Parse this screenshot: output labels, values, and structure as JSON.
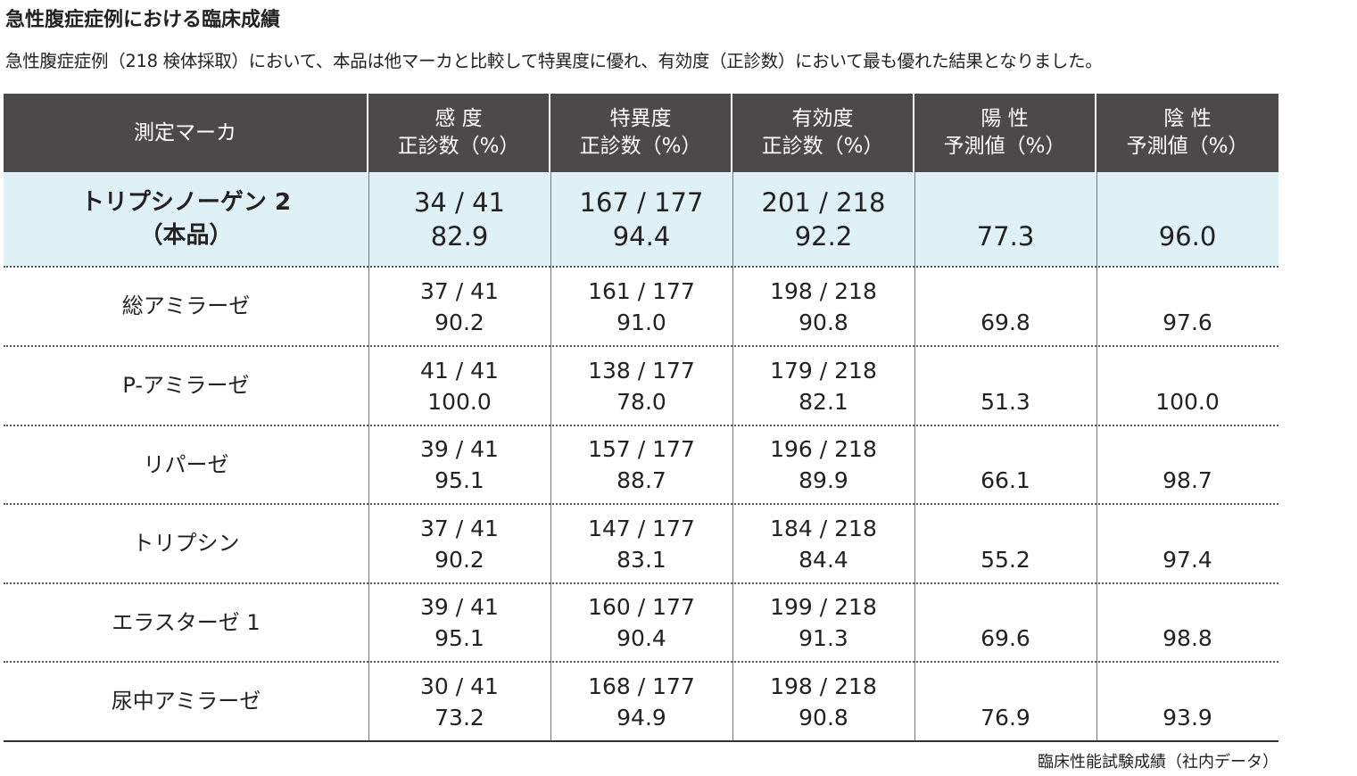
{
  "title": "急性腹症症例における臨床成績",
  "description": "急性腹症症例（218 検体採取）において、本品は他マーカと比較して特異度に優れ、有効度（正診数）において最も優れた結果となりました。",
  "table": {
    "header": [
      [
        "測定マーカ"
      ],
      [
        "感 度",
        "正診数（%）"
      ],
      [
        "特異度",
        "正診数（%）"
      ],
      [
        "有効度",
        "正診数（%）"
      ],
      [
        "陽 性",
        "予測値（%）"
      ],
      [
        "陰 性",
        "予測値（%）"
      ]
    ],
    "rows": [
      {
        "marker": [
          "トリプシノーゲン 2",
          "（本品）"
        ],
        "cells": [
          [
            "34 / 41",
            "82.9"
          ],
          [
            "167 / 177",
            "94.4"
          ],
          [
            "201 / 218",
            "92.2"
          ],
          [
            "77.3"
          ],
          [
            "96.0"
          ]
        ]
      },
      {
        "marker": [
          "総アミラーゼ"
        ],
        "cells": [
          [
            "37 / 41",
            "90.2"
          ],
          [
            "161 / 177",
            "91.0"
          ],
          [
            "198 / 218",
            "90.8"
          ],
          [
            "69.8"
          ],
          [
            "97.6"
          ]
        ]
      },
      {
        "marker": [
          "P-アミラーゼ"
        ],
        "cells": [
          [
            "41 / 41",
            "100.0"
          ],
          [
            "138 / 177",
            "78.0"
          ],
          [
            "179 / 218",
            "82.1"
          ],
          [
            "51.3"
          ],
          [
            "100.0"
          ]
        ]
      },
      {
        "marker": [
          "リパーゼ"
        ],
        "cells": [
          [
            "39 / 41",
            "95.1"
          ],
          [
            "157 / 177",
            "88.7"
          ],
          [
            "196 / 218",
            "89.9"
          ],
          [
            "66.1"
          ],
          [
            "98.7"
          ]
        ]
      },
      {
        "marker": [
          "トリプシン"
        ],
        "cells": [
          [
            "37 / 41",
            "90.2"
          ],
          [
            "147 / 177",
            "83.1"
          ],
          [
            "184 / 218",
            "84.4"
          ],
          [
            "55.2"
          ],
          [
            "97.4"
          ]
        ]
      },
      {
        "marker": [
          "エラスターゼ 1"
        ],
        "cells": [
          [
            "39 / 41",
            "95.1"
          ],
          [
            "160 / 177",
            "90.4"
          ],
          [
            "199 / 218",
            "91.3"
          ],
          [
            "69.6"
          ],
          [
            "98.8"
          ]
        ]
      },
      {
        "marker": [
          "尿中アミラーゼ"
        ],
        "cells": [
          [
            "30 / 41",
            "73.2"
          ],
          [
            "168 / 177",
            "94.9"
          ],
          [
            "198 / 218",
            "90.8"
          ],
          [
            "76.9"
          ],
          [
            "93.9"
          ]
        ]
      }
    ]
  },
  "footnote": "臨床性能試験成績（社内データ）"
}
